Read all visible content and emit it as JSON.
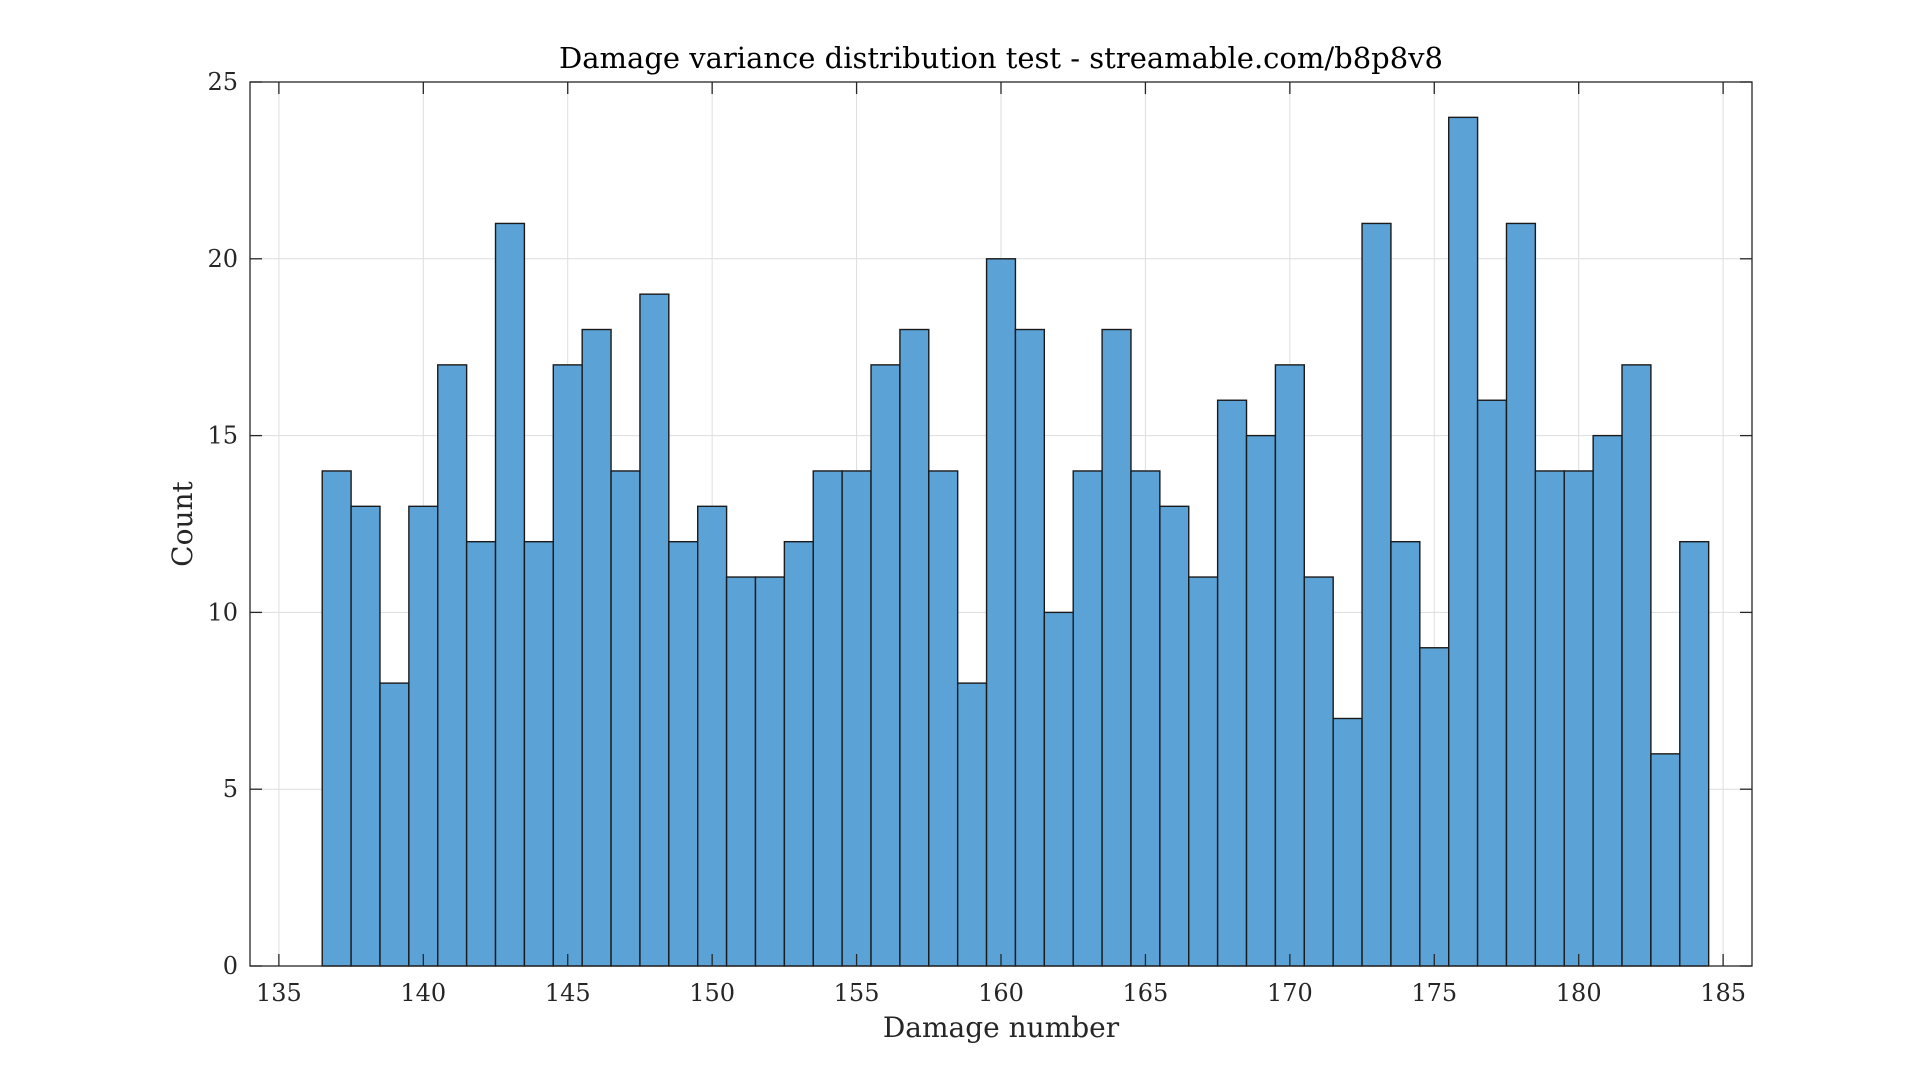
{
  "chart_data": {
    "type": "bar",
    "title": "Damage variance distribution test - streamable.com/b8p8v8",
    "xlabel": "Damage number",
    "ylabel": "Count",
    "xlim": [
      134,
      186
    ],
    "ylim": [
      0,
      25
    ],
    "xticks": [
      135,
      140,
      145,
      150,
      155,
      160,
      165,
      170,
      175,
      180,
      185
    ],
    "yticks": [
      0,
      5,
      10,
      15,
      20,
      25
    ],
    "grid": true,
    "bin_width": 1,
    "x": [
      137,
      138,
      139,
      140,
      141,
      142,
      143,
      144,
      145,
      146,
      147,
      148,
      149,
      150,
      151,
      152,
      153,
      154,
      155,
      156,
      157,
      158,
      159,
      160,
      161,
      162,
      163,
      164,
      165,
      166,
      167,
      168,
      169,
      170,
      171,
      172,
      173,
      174,
      175,
      176,
      177,
      178,
      179,
      180,
      181,
      182,
      183,
      184
    ],
    "values": [
      14,
      13,
      8,
      13,
      17,
      12,
      21,
      12,
      17,
      18,
      14,
      19,
      12,
      13,
      11,
      11,
      12,
      14,
      14,
      17,
      18,
      14,
      8,
      20,
      18,
      10,
      14,
      18,
      14,
      13,
      11,
      16,
      15,
      17,
      11,
      7,
      21,
      12,
      9,
      24,
      16,
      21,
      14,
      14,
      15,
      17,
      6,
      12
    ],
    "colors": {
      "bar_fill": "#5ba3d6",
      "bar_edge": "#1a1a1a",
      "grid": "#dedede",
      "axis": "#262626"
    }
  }
}
